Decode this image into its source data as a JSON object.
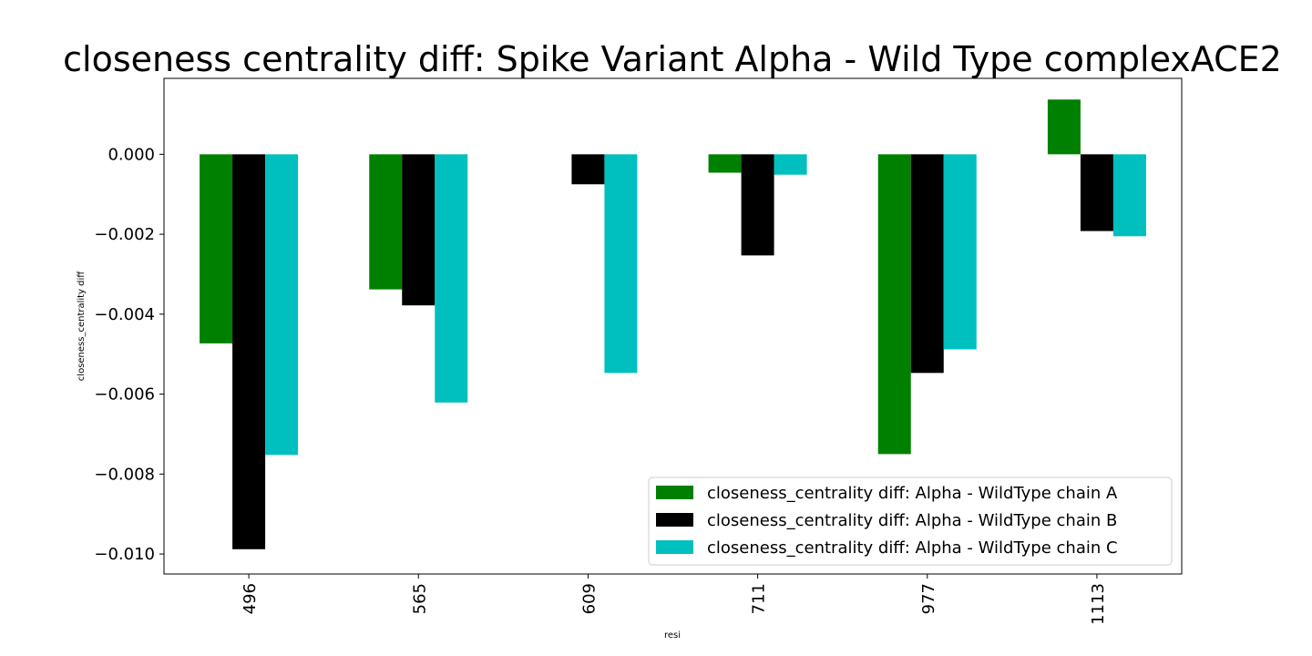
{
  "chart_data": {
    "type": "bar",
    "title": "closeness centrality diff: Spike Variant Alpha - Wild Type complexACE2",
    "xlabel": "resi",
    "ylabel": "closeness_centrality diff",
    "categories": [
      "496",
      "565",
      "609",
      "711",
      "977",
      "1113"
    ],
    "ylim": [
      -0.0105,
      0.0019
    ],
    "yticks": [
      0.0,
      -0.002,
      -0.004,
      -0.006,
      -0.008,
      -0.01
    ],
    "ytick_labels": [
      "0.000",
      "−0.002",
      "−0.004",
      "−0.006",
      "−0.008",
      "−0.010"
    ],
    "grid": false,
    "legend_position": "lower-right",
    "series": [
      {
        "name": "closeness_centrality diff: Alpha - WildType chain A",
        "color": "#008000",
        "values": [
          -0.00473,
          -0.00338,
          0.0,
          -0.00046,
          -0.0075,
          0.00137
        ]
      },
      {
        "name": "closeness_centrality diff: Alpha - WildType chain B",
        "color": "#000000",
        "values": [
          -0.00988,
          -0.00378,
          -0.00075,
          -0.00253,
          -0.00547,
          -0.00192
        ]
      },
      {
        "name": "closeness_centrality diff: Alpha - WildType chain C",
        "color": "#00bfbf",
        "values": [
          -0.00752,
          -0.00621,
          -0.00547,
          -0.00051,
          -0.00488,
          -0.00205
        ]
      }
    ]
  }
}
